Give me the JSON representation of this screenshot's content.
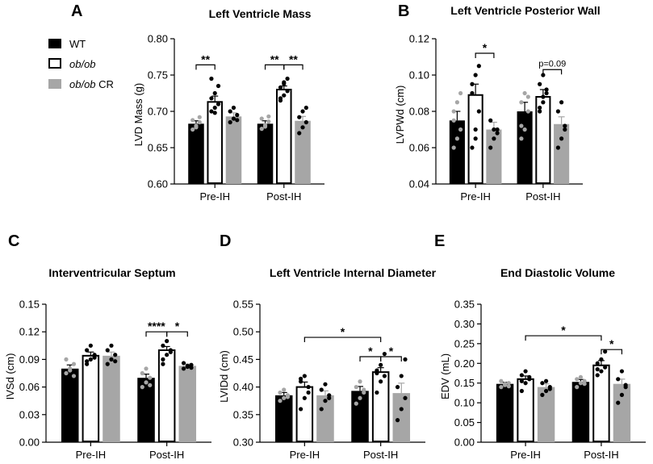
{
  "legend": {
    "items": [
      {
        "label": "WT",
        "fill": "#000000",
        "italic": false
      },
      {
        "label": "ob/ob",
        "fill": "#ffffff",
        "italic": true
      },
      {
        "label": "ob/ob CR",
        "fill": "#a6a6a6",
        "italic": true,
        "italic_part": "ob/ob",
        "plain_part": " CR"
      }
    ]
  },
  "colors": {
    "wt": "#000000",
    "obob": "#ffffff",
    "obobcr": "#a6a6a6",
    "dot_grey": "#a6a6a6",
    "dot_black": "#000000"
  },
  "chart_data": [
    {
      "panel": "A",
      "type": "bar",
      "title": "Left Ventricle Mass",
      "ylabel": "LVD Mass (g)",
      "categories": [
        "Pre-IH",
        "Post-IH"
      ],
      "ylim": [
        0.6,
        0.8
      ],
      "yticks": [
        "0.60",
        "0.65",
        "0.70",
        "0.75",
        "0.80"
      ],
      "series": [
        {
          "name": "WT",
          "values": [
            0.683,
            0.683
          ],
          "sem": [
            0.004,
            0.004
          ],
          "points": [
            [
              0.675,
              0.68,
              0.685,
              0.688,
              0.678,
              0.692
            ],
            [
              0.676,
              0.681,
              0.686,
              0.69,
              0.679,
              0.693
            ]
          ]
        },
        {
          "name": "ob/ob",
          "values": [
            0.713,
            0.73
          ],
          "sem": [
            0.008,
            0.005
          ],
          "points": [
            [
              0.7,
              0.705,
              0.71,
              0.718,
              0.725,
              0.735,
              0.745,
              0.698
            ],
            [
              0.715,
              0.722,
              0.728,
              0.733,
              0.738,
              0.745,
              0.718,
              0.74
            ]
          ]
        },
        {
          "name": "ob/ob CR",
          "values": [
            0.693,
            0.687
          ],
          "sem": [
            0.005,
            0.006
          ],
          "points": [
            [
              0.685,
              0.69,
              0.695,
              0.7,
              0.705,
              0.688
            ],
            [
              0.67,
              0.678,
              0.685,
              0.692,
              0.7,
              0.705
            ]
          ]
        }
      ],
      "brackets": [
        {
          "cat": 0,
          "from": 0,
          "to": 1,
          "y": 0.764,
          "label": "**"
        },
        {
          "cat": 1,
          "from": 0,
          "to": 1,
          "y": 0.764,
          "label": "**"
        },
        {
          "cat": 1,
          "from": 1,
          "to": 2,
          "y": 0.764,
          "label": "**"
        }
      ]
    },
    {
      "panel": "B",
      "type": "bar",
      "title": "Left Ventricle Posterior Wall",
      "ylabel": "LVPWd (cm)",
      "categories": [
        "Pre-IH",
        "Post-IH"
      ],
      "ylim": [
        0.04,
        0.12
      ],
      "yticks": [
        "0.04",
        "0.06",
        "0.08",
        "0.10",
        "0.12"
      ],
      "series": [
        {
          "name": "WT",
          "values": [
            0.075,
            0.08
          ],
          "sem": [
            0.005,
            0.005
          ],
          "points": [
            [
              0.06,
              0.065,
              0.07,
              0.08,
              0.085,
              0.09,
              0.075
            ],
            [
              0.065,
              0.07,
              0.08,
              0.085,
              0.09,
              0.088,
              0.072
            ]
          ]
        },
        {
          "name": "ob/ob",
          "values": [
            0.089,
            0.088
          ],
          "sem": [
            0.006,
            0.004
          ],
          "points": [
            [
              0.06,
              0.07,
              0.08,
              0.09,
              0.1,
              0.105,
              0.095,
              0.065
            ],
            [
              0.08,
              0.085,
              0.09,
              0.095,
              0.1,
              0.092,
              0.082,
              0.088
            ]
          ]
        },
        {
          "name": "ob/ob CR",
          "values": [
            0.07,
            0.073
          ],
          "sem": [
            0.004,
            0.004
          ],
          "points": [
            [
              0.06,
              0.065,
              0.07,
              0.075,
              0.07,
              0.068
            ],
            [
              0.06,
              0.065,
              0.07,
              0.08,
              0.085,
              0.072
            ]
          ]
        }
      ],
      "brackets": [
        {
          "cat": 0,
          "from": 1,
          "to": 2,
          "y": 0.112,
          "label": "*"
        },
        {
          "cat": 1,
          "from": 1,
          "to": 2,
          "y": 0.103,
          "label": "p=0.09"
        }
      ]
    },
    {
      "panel": "C",
      "type": "bar",
      "title": "Interventricular Septum",
      "ylabel": "IVSd (cm)",
      "categories": [
        "Pre-IH",
        "Post-IH"
      ],
      "ylim": [
        0.0,
        0.15
      ],
      "yticks": [
        "0.00",
        "0.03",
        "0.06",
        "0.09",
        "0.12",
        "0.15"
      ],
      "series": [
        {
          "name": "WT",
          "values": [
            0.08,
            0.07
          ],
          "sem": [
            0.004,
            0.004
          ],
          "points": [
            [
              0.075,
              0.08,
              0.085,
              0.09,
              0.078,
              0.072
            ],
            [
              0.06,
              0.065,
              0.07,
              0.075,
              0.08,
              0.062
            ]
          ]
        },
        {
          "name": "ob/ob",
          "values": [
            0.094,
            0.1
          ],
          "sem": [
            0.004,
            0.004
          ],
          "points": [
            [
              0.085,
              0.09,
              0.095,
              0.1,
              0.105,
              0.092,
              0.088
            ],
            [
              0.09,
              0.095,
              0.1,
              0.105,
              0.11,
              0.098,
              0.085
            ]
          ]
        },
        {
          "name": "ob/ob CR",
          "values": [
            0.094,
            0.083
          ],
          "sem": [
            0.004,
            0.002
          ],
          "points": [
            [
              0.085,
              0.09,
              0.095,
              0.1,
              0.105,
              0.088
            ],
            [
              0.08,
              0.082,
              0.084,
              0.086,
              0.083,
              0.081
            ]
          ]
        }
      ],
      "brackets": [
        {
          "cat": 1,
          "from": 0,
          "to": 1,
          "y": 0.12,
          "label": "****"
        },
        {
          "cat": 1,
          "from": 1,
          "to": 2,
          "y": 0.12,
          "label": "*"
        }
      ]
    },
    {
      "panel": "D",
      "type": "bar",
      "title": "Left Ventricle Internal Diameter",
      "ylabel": "LVIDd (cm)",
      "categories": [
        "Pre-IH",
        "Post-IH"
      ],
      "ylim": [
        0.3,
        0.55
      ],
      "yticks": [
        "0.30",
        "0.35",
        "0.40",
        "0.45",
        "0.50",
        "0.55"
      ],
      "series": [
        {
          "name": "WT",
          "values": [
            0.385,
            0.393
          ],
          "sem": [
            0.005,
            0.008
          ],
          "points": [
            [
              0.375,
              0.38,
              0.385,
              0.39,
              0.395,
              0.382
            ],
            [
              0.37,
              0.38,
              0.39,
              0.4,
              0.41,
              0.395
            ]
          ]
        },
        {
          "name": "ob/ob",
          "values": [
            0.4,
            0.427
          ],
          "sem": [
            0.009,
            0.008
          ],
          "points": [
            [
              0.36,
              0.38,
              0.4,
              0.41,
              0.42,
              0.39,
              0.415
            ],
            [
              0.39,
              0.41,
              0.42,
              0.43,
              0.44,
              0.46,
              0.425
            ]
          ]
        },
        {
          "name": "ob/ob CR",
          "values": [
            0.385,
            0.389
          ],
          "sem": [
            0.008,
            0.018
          ],
          "points": [
            [
              0.36,
              0.375,
              0.385,
              0.395,
              0.405,
              0.38
            ],
            [
              0.34,
              0.36,
              0.38,
              0.4,
              0.42,
              0.45
            ]
          ]
        }
      ],
      "brackets": [
        {
          "cat": 1,
          "from": 0,
          "to": 1,
          "y": 0.455,
          "label": "*"
        },
        {
          "cat": 1,
          "from": 1,
          "to": 2,
          "y": 0.455,
          "label": "*"
        },
        {
          "span": [
            [
              0,
              1
            ],
            [
              1,
              1
            ]
          ],
          "y": 0.49,
          "label": "*"
        }
      ]
    },
    {
      "panel": "E",
      "type": "bar",
      "title": "End Diastolic Volume",
      "ylabel": "EDV (mL)",
      "categories": [
        "Pre-IH",
        "Post-IH"
      ],
      "ylim": [
        0.0,
        0.35
      ],
      "yticks": [
        "0.00",
        "0.05",
        "0.10",
        "0.15",
        "0.20",
        "0.25",
        "0.30",
        "0.35"
      ],
      "series": [
        {
          "name": "WT",
          "values": [
            0.148,
            0.153
          ],
          "sem": [
            0.004,
            0.006
          ],
          "points": [
            [
              0.14,
              0.145,
              0.15,
              0.155,
              0.148,
              0.142
            ],
            [
              0.14,
              0.15,
              0.155,
              0.16,
              0.165,
              0.148
            ]
          ]
        },
        {
          "name": "ob/ob",
          "values": [
            0.16,
            0.195
          ],
          "sem": [
            0.008,
            0.012
          ],
          "points": [
            [
              0.13,
              0.15,
              0.16,
              0.17,
              0.18,
              0.165,
              0.155
            ],
            [
              0.17,
              0.18,
              0.19,
              0.2,
              0.21,
              0.23,
              0.185
            ]
          ]
        },
        {
          "name": "ob/ob CR",
          "values": [
            0.14,
            0.148
          ],
          "sem": [
            0.008,
            0.012
          ],
          "points": [
            [
              0.12,
              0.13,
              0.14,
              0.15,
              0.155,
              0.135
            ],
            [
              0.1,
              0.12,
              0.14,
              0.16,
              0.18,
              0.145
            ]
          ]
        }
      ],
      "brackets": [
        {
          "cat": 1,
          "from": 1,
          "to": 2,
          "y": 0.235,
          "label": "*"
        },
        {
          "cat": 1,
          "from": 1,
          "to": 2,
          "y": 0.235,
          "label": "**",
          "rightOnly": true
        },
        {
          "span": [
            [
              0,
              1
            ],
            [
              1,
              1
            ]
          ],
          "y": 0.27,
          "label": "*"
        }
      ]
    }
  ]
}
